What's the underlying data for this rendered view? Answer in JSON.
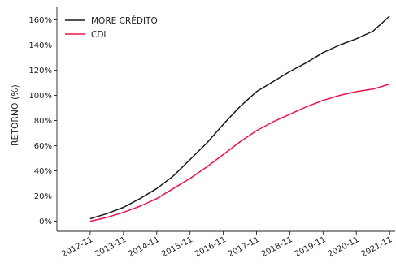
{
  "chart_data": {
    "type": "line",
    "title": "",
    "xlabel": "",
    "ylabel": "RETORNO (%)",
    "x_ticks": [
      "2012-11",
      "2013-11",
      "2014-11",
      "2015-11",
      "2016-11",
      "2017-11",
      "2018-11",
      "2019-11",
      "2020-11",
      "2021-11"
    ],
    "y_ticks": [
      0,
      20,
      40,
      60,
      80,
      100,
      120,
      140,
      160
    ],
    "y_tick_suffix": "%",
    "xlim": [
      "2011-11",
      "2022-01"
    ],
    "ylim": [
      -8,
      170
    ],
    "grid": false,
    "legend": {
      "position": "top-left"
    },
    "series": [
      {
        "name": "MORE CRÉDITO",
        "color": "#1a1a1a",
        "points": [
          [
            "2012-11",
            2
          ],
          [
            "2013-05",
            6
          ],
          [
            "2013-11",
            11
          ],
          [
            "2014-05",
            18
          ],
          [
            "2014-11",
            26
          ],
          [
            "2015-05",
            36
          ],
          [
            "2015-11",
            49
          ],
          [
            "2016-05",
            62
          ],
          [
            "2016-11",
            77
          ],
          [
            "2017-05",
            91
          ],
          [
            "2017-11",
            103
          ],
          [
            "2018-05",
            111
          ],
          [
            "2018-11",
            119
          ],
          [
            "2019-05",
            126
          ],
          [
            "2019-11",
            134
          ],
          [
            "2020-05",
            140
          ],
          [
            "2020-11",
            145
          ],
          [
            "2021-05",
            151
          ],
          [
            "2021-11",
            163
          ]
        ]
      },
      {
        "name": "CDI",
        "color": "#f01348",
        "points": [
          [
            "2012-11",
            0
          ],
          [
            "2013-05",
            3
          ],
          [
            "2013-11",
            7
          ],
          [
            "2014-05",
            12
          ],
          [
            "2014-11",
            18
          ],
          [
            "2015-05",
            26
          ],
          [
            "2015-11",
            34
          ],
          [
            "2016-05",
            43
          ],
          [
            "2016-11",
            53
          ],
          [
            "2017-05",
            63
          ],
          [
            "2017-11",
            72
          ],
          [
            "2018-05",
            79
          ],
          [
            "2018-11",
            85
          ],
          [
            "2019-05",
            91
          ],
          [
            "2019-11",
            96
          ],
          [
            "2020-05",
            100
          ],
          [
            "2020-11",
            103
          ],
          [
            "2021-05",
            105
          ],
          [
            "2021-11",
            109
          ]
        ]
      }
    ]
  }
}
